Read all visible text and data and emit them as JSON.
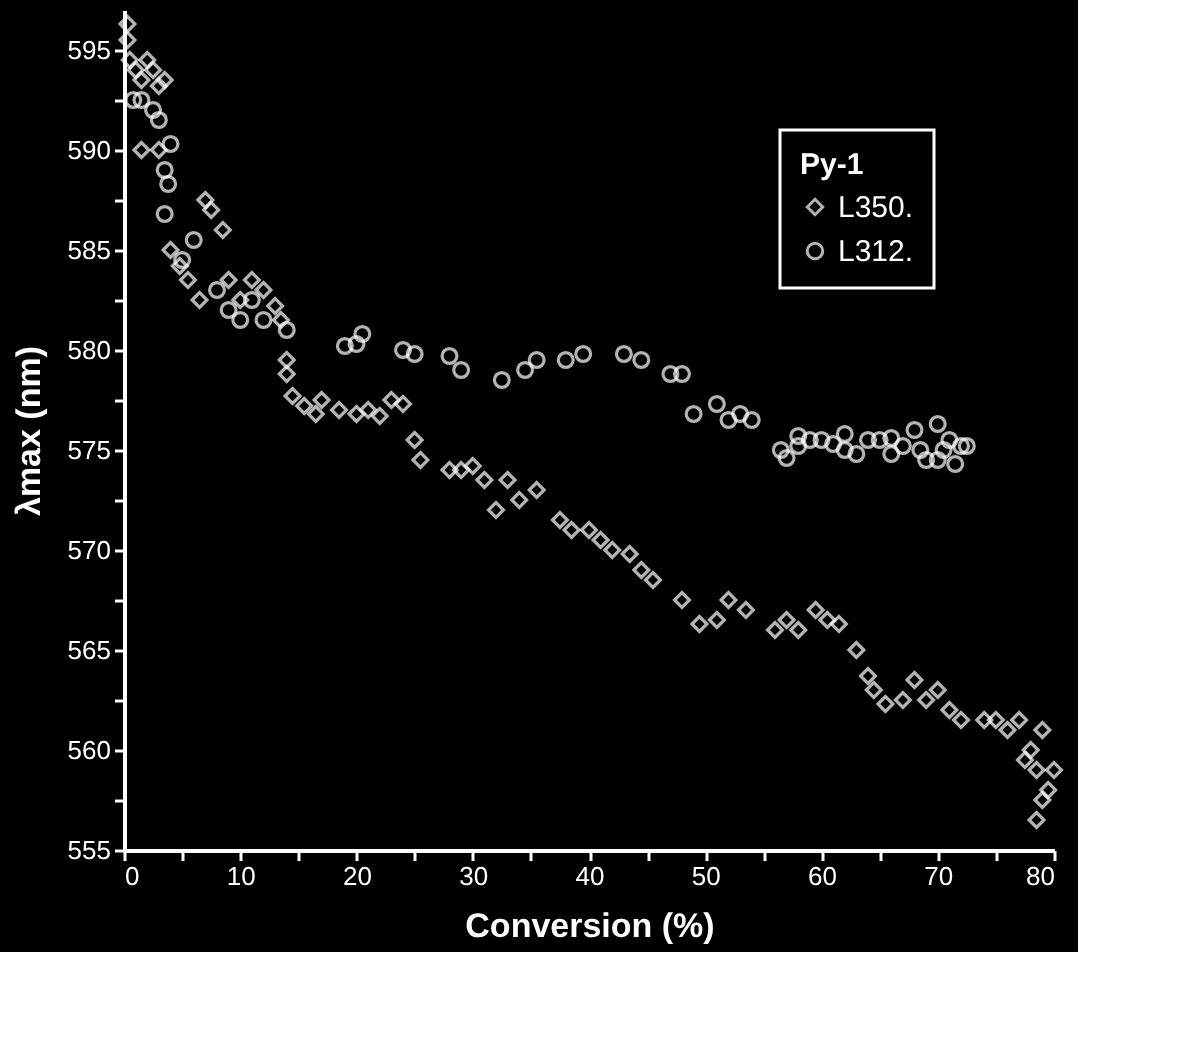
{
  "chart_data": {
    "type": "scatter",
    "xlabel": "Conversion (%)",
    "ylabel": "λmax (nm)",
    "legend_title": "Py-1",
    "legend": "top right",
    "grid": false,
    "xlim": [
      0,
      80
    ],
    "ylim": [
      555,
      597
    ],
    "xticks": [
      0,
      {
        "value": 5,
        "label": null
      },
      10,
      {
        "value": 15,
        "label": null
      },
      20,
      {
        "value": 25,
        "label": null
      },
      30,
      {
        "value": 35,
        "label": null
      },
      40,
      {
        "value": 45,
        "label": null
      },
      50,
      {
        "value": 55,
        "label": null
      },
      60,
      {
        "value": 65,
        "label": null
      },
      70,
      {
        "value": 75,
        "label": null
      },
      80
    ],
    "yticks": [
      555,
      {
        "value": 557.5,
        "label": null
      },
      560,
      {
        "value": 562.5,
        "label": null
      },
      565,
      {
        "value": 567.5,
        "label": null
      },
      570,
      {
        "value": 572.5,
        "label": null
      },
      575,
      {
        "value": 577.5,
        "label": null
      },
      580,
      {
        "value": 582.5,
        "label": null
      },
      585,
      {
        "value": 587.5,
        "label": null
      },
      590,
      {
        "value": 592.5,
        "label": null
      },
      595
    ],
    "series": [
      {
        "name": "L350.",
        "color": "#ffffff",
        "marker": "diamond",
        "x": [
          0.3,
          0.3,
          0.5,
          1,
          1.5,
          2,
          2.5,
          3,
          3.5,
          1.5,
          3,
          4,
          4.8,
          5.5,
          6.5,
          7,
          7.5,
          8.5,
          9,
          10,
          11,
          12,
          13,
          13.5,
          14,
          14,
          14.5,
          15.5,
          16.5,
          17,
          18.5,
          20,
          21,
          22,
          23,
          24,
          25,
          25.5,
          28,
          29,
          30,
          31,
          32,
          33,
          34,
          35.5,
          37.5,
          38.5,
          40,
          41,
          42,
          43.5,
          44.5,
          45.5,
          48,
          49.5,
          51,
          52,
          53.5,
          56,
          57,
          58,
          59.5,
          60.5,
          61.5,
          63,
          64,
          64.5,
          65.5,
          67,
          68,
          69,
          70,
          71,
          72,
          74,
          75,
          76,
          77,
          78,
          78.5,
          79,
          79.5,
          79,
          78.5,
          77.5,
          80
        ],
        "values": [
          596.3,
          595.5,
          594.5,
          594,
          593.5,
          594.5,
          594,
          593.2,
          593.5,
          590,
          590,
          585,
          584.2,
          583.5,
          582.5,
          587.5,
          587,
          586,
          583.5,
          582.5,
          583.5,
          583,
          582.2,
          581.5,
          579.5,
          578.8,
          577.7,
          577.2,
          576.8,
          577.5,
          577,
          576.8,
          577,
          576.7,
          577.5,
          577.3,
          575.5,
          574.5,
          574,
          574,
          574.2,
          573.5,
          572,
          573.5,
          572.5,
          573,
          571.5,
          571,
          571,
          570.5,
          570,
          569.8,
          569,
          568.5,
          567.5,
          566.3,
          566.5,
          567.5,
          567,
          566,
          566.5,
          566,
          567,
          566.5,
          566.3,
          565,
          563.7,
          563,
          562.3,
          562.5,
          563.5,
          562.5,
          563,
          562,
          561.5,
          561.5,
          561.5,
          561,
          561.5,
          560,
          559,
          561,
          558,
          557.5,
          556.5,
          559.5,
          559
        ]
      },
      {
        "name": "L312.",
        "color": "#ffffff",
        "marker": "circle",
        "x": [
          0.8,
          1.5,
          2.5,
          3,
          4,
          3.5,
          3.8,
          3.5,
          5,
          6,
          8,
          9,
          10,
          11,
          12,
          14,
          19,
          20,
          20.5,
          24,
          25,
          28,
          29,
          32.5,
          34.5,
          35.5,
          38,
          39.5,
          43,
          44.5,
          47,
          48,
          49,
          51,
          52,
          53,
          54,
          56.5,
          57,
          58,
          59,
          60,
          61,
          62,
          63,
          64,
          65,
          66,
          67,
          68,
          68.5,
          69,
          70,
          70.5,
          71,
          71.5,
          72,
          72.5,
          70,
          66,
          62,
          58
        ],
        "values": [
          592.5,
          592.5,
          592,
          591.5,
          590.3,
          589,
          588.3,
          586.8,
          584.5,
          585.5,
          583,
          582,
          581.5,
          582.5,
          581.5,
          581,
          580.2,
          580.3,
          580.8,
          580,
          579.8,
          579.7,
          579,
          578.5,
          579,
          579.5,
          579.5,
          579.8,
          579.8,
          579.5,
          578.8,
          578.8,
          576.8,
          577.3,
          576.5,
          576.8,
          576.5,
          575,
          574.6,
          575.7,
          575.5,
          575.5,
          575.3,
          575.8,
          574.8,
          575.5,
          575.5,
          575.6,
          575.2,
          576,
          575,
          574.5,
          576.3,
          575,
          575.5,
          574.3,
          575.2,
          575.2,
          574.5,
          574.8,
          575,
          575.2
        ]
      }
    ]
  }
}
